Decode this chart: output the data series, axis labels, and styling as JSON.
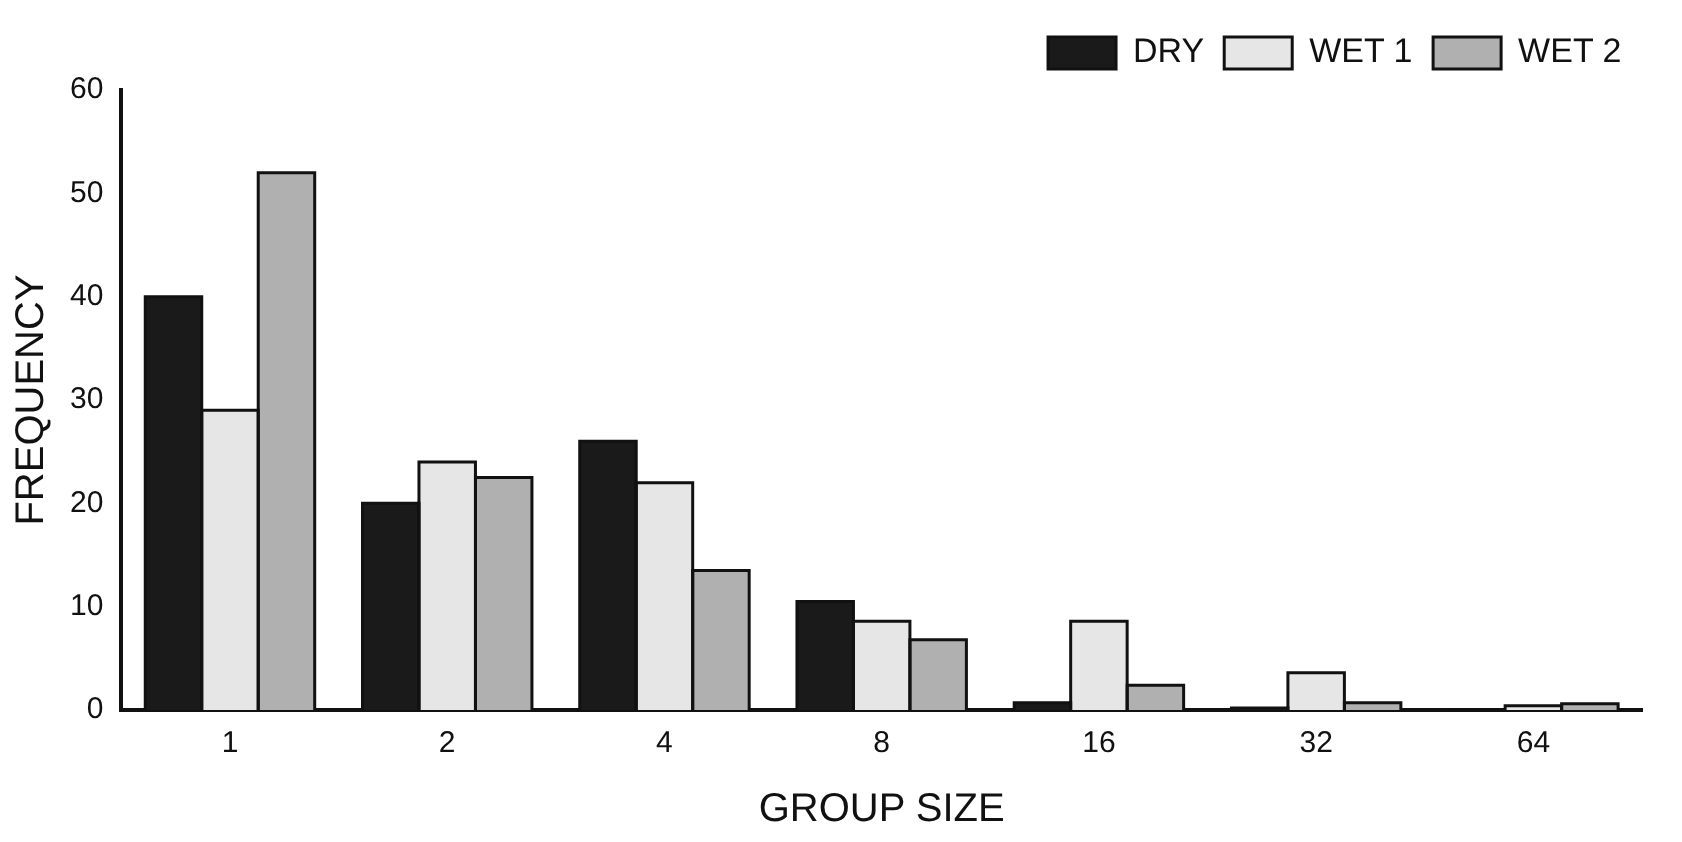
{
  "chart_data": {
    "type": "bar",
    "xlabel": "GROUP SIZE",
    "ylabel": "FREQUENCY",
    "categories": [
      "1",
      "2",
      "4",
      "8",
      "16",
      "32",
      "64"
    ],
    "series": [
      {
        "name": "DRY",
        "color": "#1a1a1a",
        "values": [
          40,
          20,
          26,
          10.5,
          0.7,
          0.2,
          0
        ]
      },
      {
        "name": "WET 1",
        "color": "#e6e6e6",
        "values": [
          29,
          24,
          22,
          8.6,
          8.6,
          3.6,
          0.4
        ]
      },
      {
        "name": "WET 2",
        "color": "#b0b0b0",
        "values": [
          52,
          22.5,
          13.5,
          6.8,
          2.4,
          0.7,
          0.6
        ]
      }
    ],
    "ylim": [
      0,
      60
    ],
    "yticks": [
      0,
      10,
      20,
      30,
      40,
      50,
      60
    ],
    "grid": false,
    "legend": "top right"
  }
}
